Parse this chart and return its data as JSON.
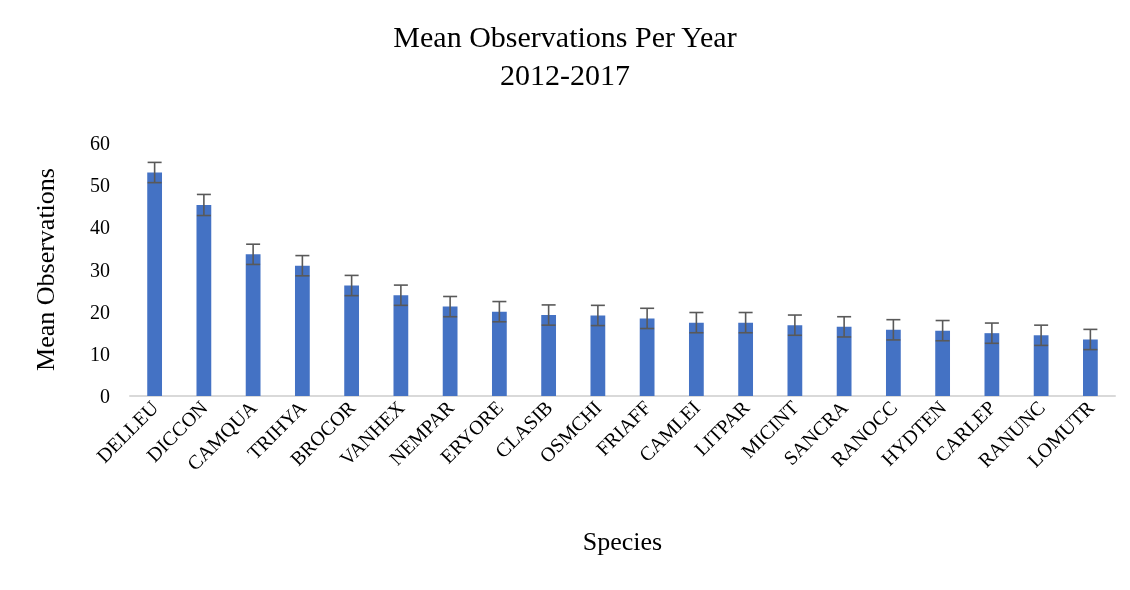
{
  "chart_data": {
    "type": "bar",
    "title": "Mean Observations Per Year\n2012-2017",
    "xlabel": "Species",
    "ylabel": "Mean Observations",
    "categories": [
      "DELLEU",
      "DICCON",
      "CAMQUA",
      "TRIHYA",
      "BROCOR",
      "VANHEX",
      "NEMPAR",
      "ERYORE",
      "CLASIB",
      "OSMCHI",
      "FRIAFF",
      "CAMLEI",
      "LITPAR",
      "MICINT",
      "SANCRA",
      "RANOCC",
      "HYDTEN",
      "CARLEP",
      "RANUNC",
      "LOMUTR"
    ],
    "values": [
      53.0,
      45.3,
      33.6,
      30.9,
      26.2,
      23.9,
      21.2,
      20.0,
      19.2,
      19.1,
      18.4,
      17.4,
      17.4,
      16.8,
      16.4,
      15.7,
      15.5,
      14.9,
      14.4,
      13.4
    ],
    "errors": [
      2.4,
      2.5,
      2.4,
      2.4,
      2.4,
      2.4,
      2.4,
      2.4,
      2.4,
      2.4,
      2.4,
      2.4,
      2.4,
      2.4,
      2.4,
      2.4,
      2.4,
      2.4,
      2.4,
      2.4
    ],
    "color": "#4472c4",
    "ylim": [
      0,
      60
    ],
    "yticks": [
      0,
      10,
      20,
      30,
      40,
      50,
      60
    ],
    "grid": false
  }
}
